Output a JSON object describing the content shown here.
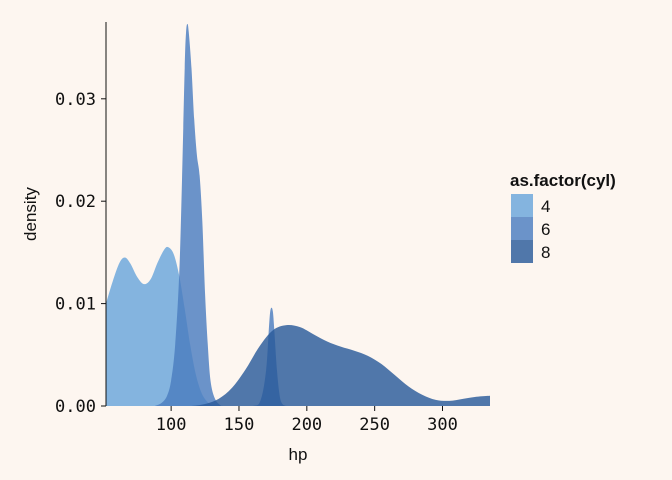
{
  "chart_data": {
    "type": "area",
    "title": "",
    "xlabel": "hp",
    "ylabel": "density",
    "xlim": [
      52,
      335
    ],
    "ylim": [
      0,
      0.0375
    ],
    "x_ticks": [
      100,
      150,
      200,
      250,
      300
    ],
    "x_tick_labels": [
      "100",
      "150",
      "200",
      "250",
      "300"
    ],
    "y_ticks": [
      0,
      0.01,
      0.02,
      0.03
    ],
    "y_tick_labels": [
      "0.00",
      "0.01",
      "0.02",
      "0.03"
    ],
    "grid": false,
    "legend": {
      "title": "as.factor(cyl)",
      "placement": "right",
      "entries": [
        "4",
        "6",
        "8"
      ]
    },
    "series": [
      {
        "name": "4",
        "color": "#6fa8dc",
        "opacity": 0.85,
        "points": [
          [
            52,
            0.01
          ],
          [
            57,
            0.0122
          ],
          [
            62,
            0.014
          ],
          [
            66,
            0.0145
          ],
          [
            70,
            0.0139
          ],
          [
            75,
            0.0126
          ],
          [
            80,
            0.0119
          ],
          [
            85,
            0.0124
          ],
          [
            90,
            0.014
          ],
          [
            95,
            0.0153
          ],
          [
            98,
            0.0155
          ],
          [
            102,
            0.0148
          ],
          [
            106,
            0.0127
          ],
          [
            110,
            0.0095
          ],
          [
            114,
            0.006
          ],
          [
            118,
            0.0032
          ],
          [
            122,
            0.0014
          ],
          [
            126,
            0.0005
          ],
          [
            130,
            0.0001
          ],
          [
            134,
            0.0
          ]
        ]
      },
      {
        "name": "6",
        "color": "#4a7cc0",
        "opacity": 0.82,
        "points": [
          [
            88,
            0.0
          ],
          [
            93,
            0.0003
          ],
          [
            97,
            0.001
          ],
          [
            100,
            0.0025
          ],
          [
            103,
            0.006
          ],
          [
            106,
            0.013
          ],
          [
            108,
            0.022
          ],
          [
            110,
            0.033
          ],
          [
            111,
            0.0365
          ],
          [
            112,
            0.0373
          ],
          [
            113,
            0.0365
          ],
          [
            115,
            0.033
          ],
          [
            117,
            0.028
          ],
          [
            119,
            0.0245
          ],
          [
            121,
            0.0225
          ],
          [
            123,
            0.018
          ],
          [
            125,
            0.011
          ],
          [
            127,
            0.006
          ],
          [
            129,
            0.0025
          ],
          [
            132,
            0.0008
          ],
          [
            136,
            0.0001
          ],
          [
            140,
            0.0
          ],
          [
            160,
            0.0
          ],
          [
            166,
            0.0006
          ],
          [
            170,
            0.0035
          ],
          [
            172,
            0.0075
          ],
          [
            173,
            0.0092
          ],
          [
            174,
            0.0096
          ],
          [
            175,
            0.0092
          ],
          [
            176,
            0.0075
          ],
          [
            178,
            0.0035
          ],
          [
            180,
            0.001
          ],
          [
            182,
            0.0002
          ],
          [
            185,
            0.0
          ]
        ]
      },
      {
        "name": "8",
        "color": "#2a5a9a",
        "opacity": 0.82,
        "points": [
          [
            115,
            0.0
          ],
          [
            125,
            0.0002
          ],
          [
            135,
            0.0007
          ],
          [
            145,
            0.0018
          ],
          [
            155,
            0.0036
          ],
          [
            165,
            0.0058
          ],
          [
            175,
            0.0074
          ],
          [
            185,
            0.0079
          ],
          [
            195,
            0.0077
          ],
          [
            205,
            0.007
          ],
          [
            215,
            0.0063
          ],
          [
            225,
            0.0058
          ],
          [
            235,
            0.0054
          ],
          [
            245,
            0.0049
          ],
          [
            255,
            0.0041
          ],
          [
            265,
            0.003
          ],
          [
            275,
            0.0019
          ],
          [
            285,
            0.0011
          ],
          [
            295,
            0.0006
          ],
          [
            305,
            0.0005
          ],
          [
            315,
            0.0007
          ],
          [
            325,
            0.0009
          ],
          [
            335,
            0.001
          ]
        ]
      }
    ]
  }
}
